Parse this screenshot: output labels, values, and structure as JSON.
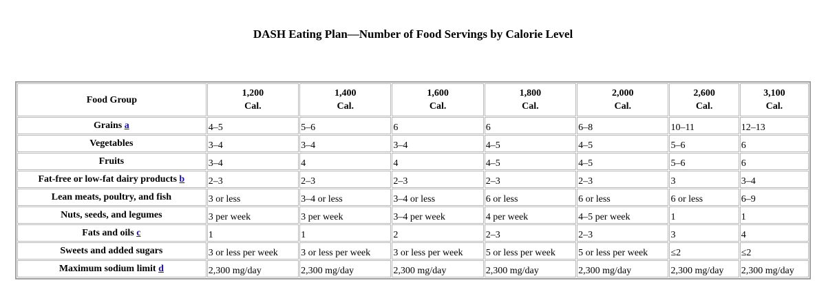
{
  "page": {
    "title": "DASH Eating Plan—Number of Food Servings by Calorie Level"
  },
  "table": {
    "corner_header": "Food Group",
    "columns": [
      {
        "value": "1,200",
        "unit": "Cal."
      },
      {
        "value": "1,400",
        "unit": "Cal."
      },
      {
        "value": "1,600",
        "unit": "Cal."
      },
      {
        "value": "1,800",
        "unit": "Cal."
      },
      {
        "value": "2,000",
        "unit": "Cal."
      },
      {
        "value": "2,600",
        "unit": "Cal."
      },
      {
        "value": "3,100",
        "unit": "Cal."
      }
    ],
    "rows": [
      {
        "label": "Grains",
        "ref": "a",
        "cells": [
          "4–5",
          "5–6",
          "6",
          "6",
          "6–8",
          "10–11",
          "12–13"
        ]
      },
      {
        "label": "Vegetables",
        "ref": "",
        "cells": [
          "3–4",
          "3–4",
          "3–4",
          "4–5",
          "4–5",
          "5–6",
          "6"
        ]
      },
      {
        "label": "Fruits",
        "ref": "",
        "cells": [
          "3–4",
          "4",
          "4",
          "4–5",
          "4–5",
          "5–6",
          "6"
        ]
      },
      {
        "label": "Fat-free or low-fat dairy products",
        "ref": "b",
        "cells": [
          "2–3",
          "2–3",
          "2–3",
          "2–3",
          "2–3",
          "3",
          "3–4"
        ]
      },
      {
        "label": "Lean meats, poultry, and fish",
        "ref": "",
        "cells": [
          "3 or less",
          "3–4 or less",
          "3–4 or less",
          "6 or less",
          "6 or less",
          "6 or less",
          "6–9"
        ]
      },
      {
        "label": "Nuts, seeds, and legumes",
        "ref": "",
        "cells": [
          "3 per week",
          "3 per week",
          "3–4 per week",
          "4 per week",
          "4–5 per week",
          "1",
          "1"
        ]
      },
      {
        "label": "Fats and oils",
        "ref": "c",
        "cells": [
          "1",
          "1",
          "2",
          "2–3",
          "2–3",
          "3",
          "4"
        ]
      },
      {
        "label": "Sweets and added sugars",
        "ref": "",
        "cells": [
          "3 or less per week",
          "3 or less per week",
          "3 or less per week",
          "5 or less per week",
          "5 or less per week",
          "≤2",
          "≤2"
        ]
      },
      {
        "label": "Maximum sodium limit",
        "ref": "d",
        "cells": [
          "2,300 mg/day",
          "2,300 mg/day",
          "2,300 mg/day",
          "2,300 mg/day",
          "2,300 mg/day",
          "2,300 mg/day",
          "2,300 mg/day"
        ]
      }
    ]
  }
}
